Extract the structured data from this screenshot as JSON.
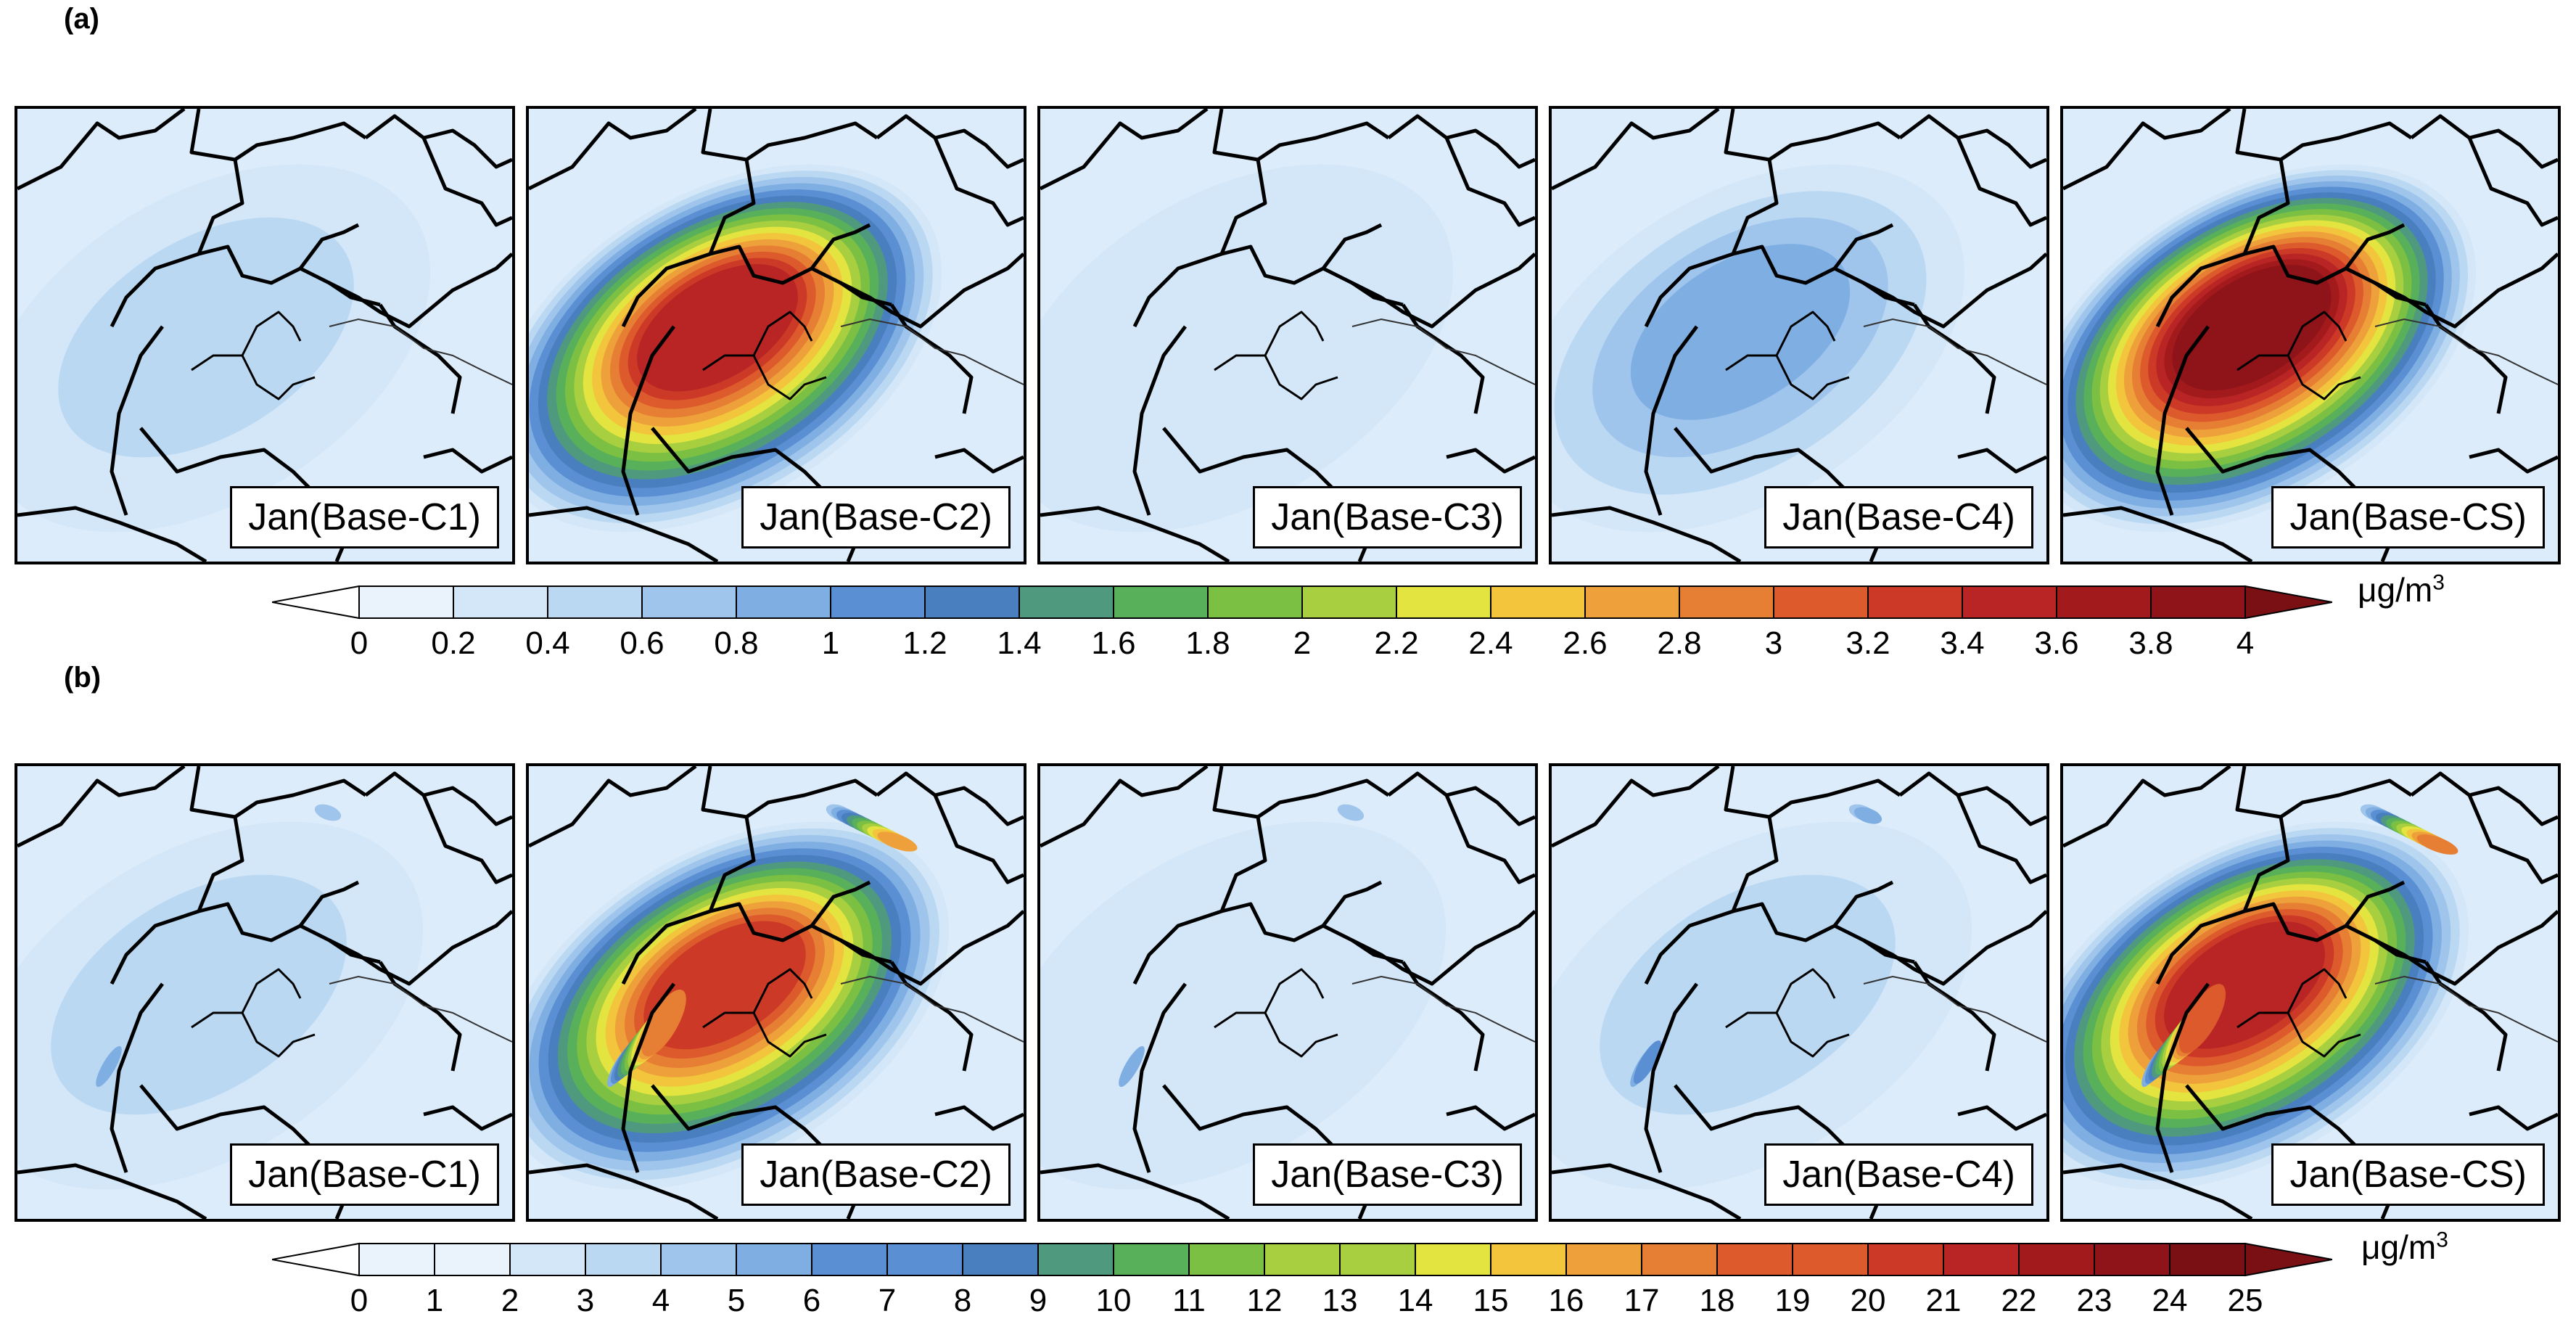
{
  "panels": [
    {
      "id": "a",
      "label": "(a)",
      "maps": [
        "Jan(Base-C1)",
        "Jan(Base-C2)",
        "Jan(Base-C3)",
        "Jan(Base-C4)",
        "Jan(Base-CS)"
      ],
      "map_intensity": [
        0.12,
        0.85,
        0.05,
        0.2,
        0.95
      ],
      "colorbar": {
        "ticks": [
          "0",
          "0.2",
          "0.4",
          "0.6",
          "0.8",
          "1",
          "1.2",
          "1.4",
          "1.6",
          "1.8",
          "2",
          "2.2",
          "2.4",
          "2.6",
          "2.8",
          "3",
          "3.2",
          "3.4",
          "3.6",
          "3.8",
          "4"
        ],
        "unit": "μg/m",
        "unit_sup": "3"
      }
    },
    {
      "id": "b",
      "label": "(b)",
      "maps": [
        "Jan(Base-C1)",
        "Jan(Base-C2)",
        "Jan(Base-C3)",
        "Jan(Base-C4)",
        "Jan(Base-CS)"
      ],
      "map_intensity": [
        0.1,
        0.8,
        0.04,
        0.12,
        0.85
      ],
      "colorbar": {
        "ticks": [
          "0",
          "1",
          "2",
          "3",
          "4",
          "5",
          "6",
          "7",
          "8",
          "9",
          "10",
          "11",
          "12",
          "13",
          "14",
          "15",
          "16",
          "17",
          "18",
          "19",
          "20",
          "21",
          "22",
          "23",
          "24",
          "25"
        ],
        "unit": "μg/m",
        "unit_sup": "3"
      }
    }
  ],
  "colors": [
    "#eaf3fc",
    "#d3e7f8",
    "#bad8f2",
    "#9fc5ec",
    "#7eaee2",
    "#5b8fd3",
    "#4a7fbf",
    "#4f9a7e",
    "#58b05a",
    "#7cc043",
    "#a8cf3f",
    "#e4e441",
    "#f2c53c",
    "#eea13a",
    "#e67f33",
    "#dc5a2b",
    "#cc3a27",
    "#b92524",
    "#a31a1d",
    "#8e1419",
    "#7a1014"
  ]
}
